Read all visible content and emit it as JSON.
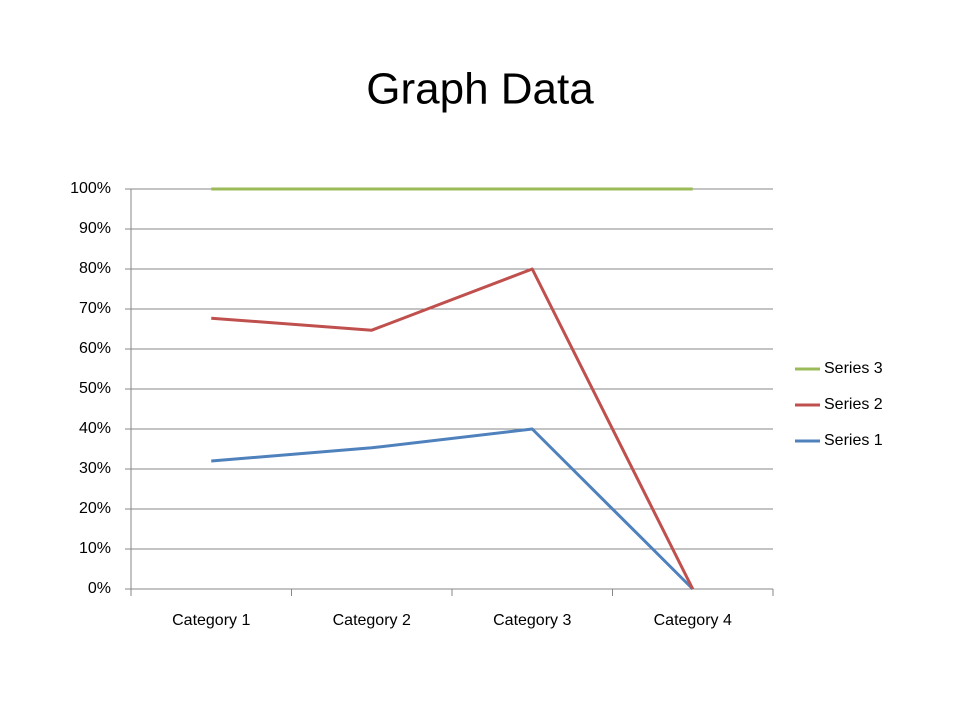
{
  "chart_data": {
    "type": "line",
    "title": "Graph Data",
    "stacked": true,
    "categories": [
      "Category 1",
      "Category 2",
      "Category 3",
      "Category 4"
    ],
    "series": [
      {
        "name": "Series 1",
        "color": "#4f81bd",
        "values": [
          32,
          35.3,
          40,
          0
        ]
      },
      {
        "name": "Series 2",
        "color": "#c0504d",
        "values": [
          35.7,
          29.4,
          40,
          0
        ]
      },
      {
        "name": "Series 3",
        "color": "#9bbb59",
        "values": [
          32.3,
          35.3,
          20,
          100
        ]
      }
    ],
    "ylim": [
      0,
      100
    ],
    "yticks": [
      {
        "value": 0,
        "label": "0%"
      },
      {
        "value": 10,
        "label": "10%"
      },
      {
        "value": 20,
        "label": "20%"
      },
      {
        "value": 30,
        "label": "30%"
      },
      {
        "value": 40,
        "label": "40%"
      },
      {
        "value": 50,
        "label": "50%"
      },
      {
        "value": 60,
        "label": "60%"
      },
      {
        "value": 70,
        "label": "70%"
      },
      {
        "value": 80,
        "label": "80%"
      },
      {
        "value": 90,
        "label": "90%"
      },
      {
        "value": 100,
        "label": "100%"
      }
    ],
    "grid": true,
    "legend": "right"
  }
}
